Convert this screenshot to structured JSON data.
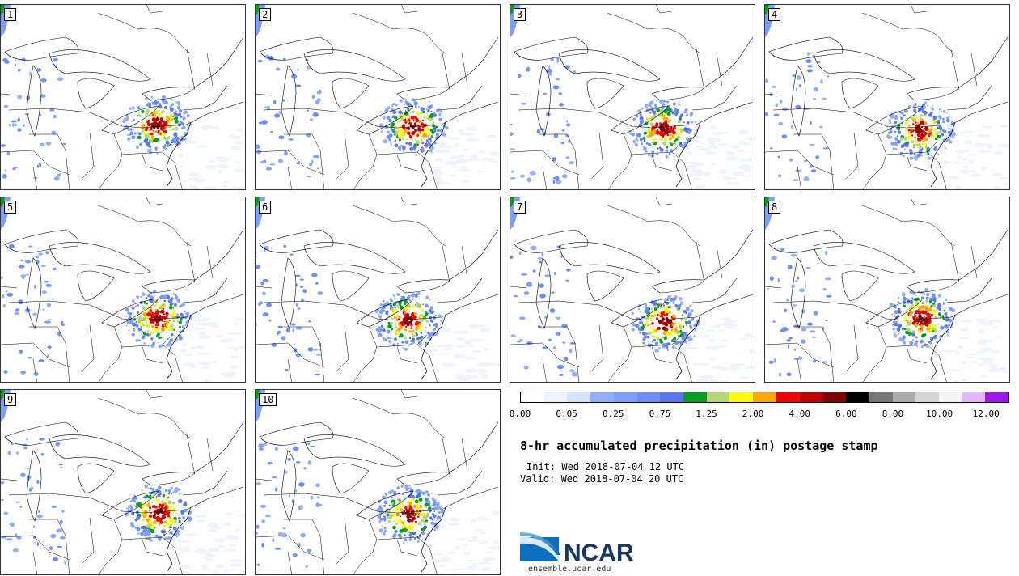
{
  "panels": [
    {
      "label": "1"
    },
    {
      "label": "2"
    },
    {
      "label": "3"
    },
    {
      "label": "4"
    },
    {
      "label": "5"
    },
    {
      "label": "6"
    },
    {
      "label": "7"
    },
    {
      "label": "8"
    },
    {
      "label": "9"
    },
    {
      "label": "10"
    }
  ],
  "colorbar": {
    "colors": [
      "#ffffff",
      "#eef3fd",
      "#d7e3fa",
      "#91aefa",
      "#7f9ef8",
      "#6e8df6",
      "#5c75ee",
      "#079d1f",
      "#b5d57a",
      "#fffa05",
      "#fca700",
      "#ee0404",
      "#c30000",
      "#7e0000",
      "#000000",
      "#757575",
      "#acacac",
      "#d6d6d6",
      "#f4f4f4",
      "#e3b6f8",
      "#9b18e8"
    ],
    "tick_labels": [
      "0.00",
      "0.05",
      "0.25",
      "0.75",
      "1.25",
      "2.00",
      "4.00",
      "6.00",
      "8.00",
      "10.00",
      "12.00"
    ]
  },
  "title": "8-hr accumulated precipitation (in) postage stamp",
  "init_text": "Init: Wed 2018-07-04 12 UTC",
  "valid_text": "Valid: Wed 2018-07-04 20 UTC",
  "logo_text": "NCAR",
  "website": "ensemble.ucar.edu"
}
